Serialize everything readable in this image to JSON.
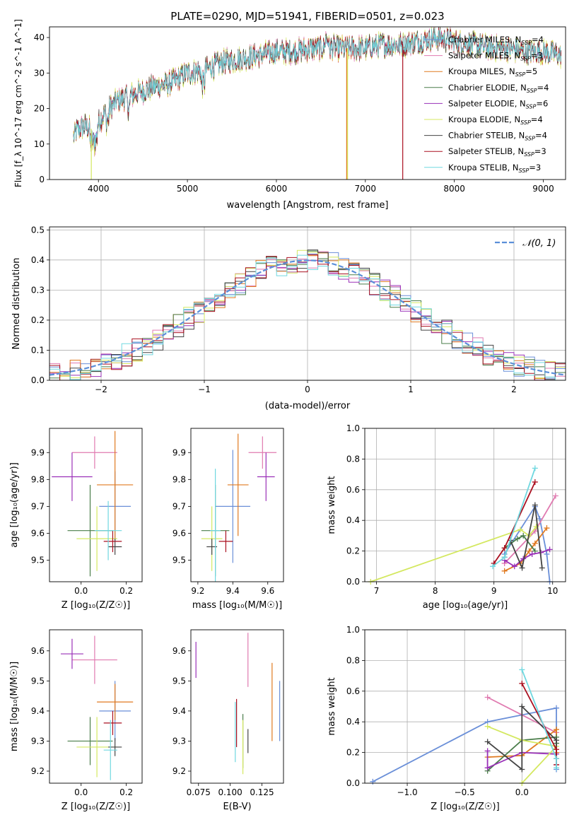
{
  "colors": {
    "Chabrier MILES": "#6a8fd8",
    "Salpeter MILES": "#e07ab0",
    "Kroupa MILES": "#e07a20",
    "Chabrier ELODIE": "#4a7d4a",
    "Salpeter ELODIE": "#9a30b8",
    "Kroupa ELODIE": "#d4e860",
    "Chabrier STELIB": "#444444",
    "Salpeter STELIB": "#aa1020",
    "Kroupa STELIB": "#70d8e0",
    "normal": "#5b8fd8"
  },
  "chart_data": [
    {
      "type": "line",
      "id": "spectrum",
      "title": "PLATE=0290, MJD=51941, FIBERID=0501, z=0.023",
      "xlabel": "wavelength [Angstrom, rest frame]",
      "ylabel": "Flux [f_λ 10^-17 erg cm^-2 s^-1 A^-1]",
      "xlim": [
        3450,
        9250
      ],
      "ylim": [
        0,
        43
      ],
      "xticks": [
        "4000",
        "5000",
        "6000",
        "7000",
        "8000",
        "9000"
      ],
      "yticks": [
        "0",
        "10",
        "20",
        "30",
        "40"
      ],
      "continuum_knots": {
        "x": [
          3720,
          3760,
          3850,
          3950,
          4050,
          4200,
          4400,
          4600,
          4800,
          5000,
          5200,
          5400,
          5600,
          5800,
          6000,
          6200,
          6400,
          6600,
          6800,
          7000,
          7200,
          7400,
          7600,
          7800,
          8000,
          8200,
          8400,
          8600,
          8800,
          9000,
          9200
        ],
        "y": [
          12,
          14,
          15,
          14,
          18,
          22,
          24,
          26,
          27,
          30,
          31,
          33,
          34,
          35,
          36,
          36,
          37,
          37,
          37,
          37,
          38,
          38,
          39,
          40,
          39,
          38,
          37,
          37,
          36,
          36,
          35
        ]
      },
      "legend": [
        {
          "label": "Chabrier MILES",
          "nssp": "4"
        },
        {
          "label": "Salpeter MILES",
          "nssp": "3"
        },
        {
          "label": "Kroupa MILES",
          "nssp": "5"
        },
        {
          "label": "Chabrier ELODIE",
          "nssp": "4"
        },
        {
          "label": "Salpeter ELODIE",
          "nssp": "6"
        },
        {
          "label": "Kroupa ELODIE",
          "nssp": "4"
        },
        {
          "label": "Chabrier STELIB",
          "nssp": "4"
        },
        {
          "label": "Salpeter STELIB",
          "nssp": "3"
        },
        {
          "label": "Kroupa STELIB",
          "nssp": "3"
        }
      ],
      "legend_placement": "right"
    },
    {
      "type": "histogram",
      "id": "residuals",
      "xlabel": "(data-model)/error",
      "ylabel": "Normed distribution",
      "xlim": [
        -2.5,
        2.5
      ],
      "ylim": [
        0,
        0.51
      ],
      "xticks": [
        "−2",
        "−1",
        "0",
        "1",
        "2"
      ],
      "yticks": [
        "0.0",
        "0.1",
        "0.2",
        "0.3",
        "0.4",
        "0.5"
      ],
      "bin_width": 0.1,
      "normal_legend": "𝒩(0, 1)",
      "legend_placement": "top-right",
      "grid": true
    },
    {
      "type": "scatter",
      "id": "age-vs-Z",
      "xlabel": "Z [log₁₀(Z/Z☉)]",
      "ylabel": "age  [log₁₀(age/yr)]",
      "xlim": [
        -0.14,
        0.27
      ],
      "ylim": [
        9.42,
        9.99
      ],
      "xticks": [
        "0.0",
        "0.2"
      ],
      "yticks": [
        "9.5",
        "9.6",
        "9.7",
        "9.8",
        "9.9"
      ],
      "points": [
        {
          "s": "Chabrier MILES",
          "x": 0.15,
          "xe": 0.07,
          "y": 9.7,
          "ye": 0.13
        },
        {
          "s": "Salpeter MILES",
          "x": 0.06,
          "xe": 0.1,
          "y": 9.9,
          "ye": 0.06
        },
        {
          "s": "Kroupa MILES",
          "x": 0.15,
          "xe": 0.08,
          "y": 9.78,
          "ye": 0.2
        },
        {
          "s": "Chabrier ELODIE",
          "x": 0.04,
          "xe": 0.1,
          "y": 9.61,
          "ye": 0.17
        },
        {
          "s": "Salpeter ELODIE",
          "x": -0.04,
          "xe": 0.09,
          "y": 9.81,
          "ye": 0.09
        },
        {
          "s": "Kroupa ELODIE",
          "x": 0.07,
          "xe": 0.09,
          "y": 9.58,
          "ye": 0.12
        },
        {
          "s": "Chabrier STELIB",
          "x": 0.15,
          "xe": 0.03,
          "y": 9.55,
          "ye": 0.03
        },
        {
          "s": "Salpeter STELIB",
          "x": 0.14,
          "xe": 0.04,
          "y": 9.57,
          "ye": 0.04
        },
        {
          "s": "Kroupa STELIB",
          "x": 0.12,
          "xe": 0.06,
          "y": 9.61,
          "ye": 0.11
        }
      ]
    },
    {
      "type": "scatter",
      "id": "age-vs-mass",
      "xlabel": "mass [log₁₀(M/M☉)]",
      "ylabel": "",
      "xlim": [
        9.16,
        9.69
      ],
      "ylim": [
        9.42,
        9.99
      ],
      "xticks": [
        "9.2",
        "9.4",
        "9.6"
      ],
      "yticks": [
        "9.5",
        "9.6",
        "9.7",
        "9.8",
        "9.9"
      ],
      "points": [
        {
          "s": "Chabrier MILES",
          "x": 9.4,
          "xe": 0.1,
          "y": 9.7,
          "ye": 0.21
        },
        {
          "s": "Salpeter MILES",
          "x": 9.57,
          "xe": 0.08,
          "y": 9.9,
          "ye": 0.06
        },
        {
          "s": "Kroupa MILES",
          "x": 9.43,
          "xe": 0.06,
          "y": 9.78,
          "ye": 0.19
        },
        {
          "s": "Chabrier ELODIE",
          "x": 9.3,
          "xe": 0.08,
          "y": 9.61,
          "ye": 0.17
        },
        {
          "s": "Salpeter ELODIE",
          "x": 9.59,
          "xe": 0.05,
          "y": 9.81,
          "ye": 0.09
        },
        {
          "s": "Kroupa ELODIE",
          "x": 9.28,
          "xe": 0.06,
          "y": 9.58,
          "ye": 0.12
        },
        {
          "s": "Chabrier STELIB",
          "x": 9.28,
          "xe": 0.03,
          "y": 9.55,
          "ye": 0.03
        },
        {
          "s": "Salpeter STELIB",
          "x": 9.36,
          "xe": 0.04,
          "y": 9.57,
          "ye": 0.04
        },
        {
          "s": "Kroupa STELIB",
          "x": 9.3,
          "xe": 0.03,
          "y": 9.61,
          "ye": 0.23
        }
      ]
    },
    {
      "type": "line",
      "id": "weight-vs-age",
      "xlabel": "age  [log₁₀(age/yr)]",
      "ylabel": "mass weight",
      "xlim": [
        6.8,
        10.22
      ],
      "ylim": [
        0,
        1
      ],
      "xticks": [
        "7",
        "8",
        "9",
        "10"
      ],
      "yticks": [
        "0.0",
        "0.2",
        "0.4",
        "0.6",
        "0.8",
        "1.0"
      ],
      "grid": true,
      "series": [
        {
          "s": "Chabrier MILES",
          "x": [
            9.18,
            9.7,
            9.78,
            9.9,
            9.95
          ],
          "y": [
            0.18,
            0.49,
            0.41,
            0.18,
            0.0
          ]
        },
        {
          "s": "Salpeter MILES",
          "x": [
            9.18,
            9.7,
            10.05
          ],
          "y": [
            0.12,
            0.33,
            0.56
          ]
        },
        {
          "s": "Kroupa MILES",
          "x": [
            9.18,
            9.45,
            9.6,
            9.7,
            9.9
          ],
          "y": [
            0.07,
            0.12,
            0.2,
            0.25,
            0.35
          ]
        },
        {
          "s": "Chabrier ELODIE",
          "x": [
            9.18,
            9.4,
            9.5,
            9.7
          ],
          "y": [
            0.22,
            0.28,
            0.3,
            0.2
          ]
        },
        {
          "s": "Salpeter ELODIE",
          "x": [
            9.18,
            9.35,
            9.5,
            9.65,
            9.8,
            9.95
          ],
          "y": [
            0.14,
            0.1,
            0.15,
            0.18,
            0.19,
            0.21
          ]
        },
        {
          "s": "Kroupa ELODIE",
          "x": [
            6.9,
            9.45,
            9.6,
            9.72
          ],
          "y": [
            0.0,
            0.34,
            0.3,
            0.36
          ]
        },
        {
          "s": "Chabrier STELIB",
          "x": [
            9.18,
            9.28,
            9.48,
            9.7,
            9.82
          ],
          "y": [
            0.16,
            0.27,
            0.09,
            0.5,
            0.09
          ]
        },
        {
          "s": "Salpeter STELIB",
          "x": [
            9.0,
            9.18,
            9.7
          ],
          "y": [
            0.12,
            0.22,
            0.65
          ]
        },
        {
          "s": "Kroupa STELIB",
          "x": [
            8.98,
            9.18,
            9.7
          ],
          "y": [
            0.1,
            0.16,
            0.74
          ]
        }
      ]
    },
    {
      "type": "scatter",
      "id": "mass-vs-Z",
      "xlabel": "Z [log₁₀(Z/Z☉)]",
      "ylabel": "mass [log₁₀(M/M☉)]",
      "xlim": [
        -0.14,
        0.27
      ],
      "ylim": [
        9.16,
        9.67
      ],
      "xticks": [
        "0.0",
        "0.2"
      ],
      "yticks": [
        "9.2",
        "9.3",
        "9.4",
        "9.5",
        "9.6"
      ],
      "points": [
        {
          "s": "Chabrier MILES",
          "x": 0.15,
          "xe": 0.07,
          "y": 9.4,
          "ye": 0.1
        },
        {
          "s": "Salpeter MILES",
          "x": 0.06,
          "xe": 0.1,
          "y": 9.57,
          "ye": 0.08
        },
        {
          "s": "Kroupa MILES",
          "x": 0.15,
          "xe": 0.08,
          "y": 9.43,
          "ye": 0.06
        },
        {
          "s": "Chabrier ELODIE",
          "x": 0.04,
          "xe": 0.1,
          "y": 9.3,
          "ye": 0.08
        },
        {
          "s": "Salpeter ELODIE",
          "x": -0.04,
          "xe": 0.05,
          "y": 9.59,
          "ye": 0.05
        },
        {
          "s": "Kroupa ELODIE",
          "x": 0.07,
          "xe": 0.09,
          "y": 9.28,
          "ye": 0.1
        },
        {
          "s": "Chabrier STELIB",
          "x": 0.15,
          "xe": 0.03,
          "y": 9.28,
          "ye": 0.03
        },
        {
          "s": "Salpeter STELIB",
          "x": 0.14,
          "xe": 0.04,
          "y": 9.36,
          "ye": 0.04
        },
        {
          "s": "Kroupa STELIB",
          "x": 0.13,
          "xe": 0.03,
          "y": 9.27,
          "ye": 0.1
        }
      ]
    },
    {
      "type": "scatter",
      "id": "mass-vs-ebv",
      "xlabel": "E(B-V)",
      "ylabel": "",
      "xlim": [
        0.069,
        0.142
      ],
      "ylim": [
        9.16,
        9.67
      ],
      "xticks": [
        "0.075",
        "0.100",
        "0.125"
      ],
      "yticks": [
        "9.2",
        "9.3",
        "9.4",
        "9.5",
        "9.6"
      ],
      "points": [
        {
          "s": "Chabrier MILES",
          "x": 0.139,
          "y": 9.4,
          "ye": 0.1
        },
        {
          "s": "Salpeter MILES",
          "x": 0.114,
          "y": 9.57,
          "ye": 0.09
        },
        {
          "s": "Kroupa MILES",
          "x": 0.133,
          "y": 9.43,
          "ye": 0.13
        },
        {
          "s": "Chabrier ELODIE",
          "x": 0.11,
          "y": 9.3,
          "ye": 0.09
        },
        {
          "s": "Salpeter ELODIE",
          "x": 0.073,
          "y": 9.57,
          "ye": 0.06
        },
        {
          "s": "Kroupa ELODIE",
          "x": 0.11,
          "y": 9.28,
          "ye": 0.09
        },
        {
          "s": "Chabrier STELIB",
          "x": 0.114,
          "y": 9.3,
          "ye": 0.04
        },
        {
          "s": "Salpeter STELIB",
          "x": 0.105,
          "y": 9.36,
          "ye": 0.08
        },
        {
          "s": "Kroupa STELIB",
          "x": 0.104,
          "y": 9.33,
          "ye": 0.1
        }
      ]
    },
    {
      "type": "line",
      "id": "weight-vs-Z",
      "xlabel": "Z [log₁₀(Z/Z☉)]",
      "ylabel": "mass weight",
      "xlim": [
        -1.37,
        0.38
      ],
      "ylim": [
        0,
        1
      ],
      "xticks": [
        "−1.0",
        "−0.5",
        "0.0"
      ],
      "yticks": [
        "0.0",
        "0.2",
        "0.4",
        "0.6",
        "0.8",
        "1.0"
      ],
      "grid": true,
      "series": [
        {
          "s": "Chabrier MILES",
          "x": [
            -1.3,
            -0.3,
            0.3,
            0.3
          ],
          "y": [
            0.01,
            0.4,
            0.49,
            0.09
          ]
        },
        {
          "s": "Salpeter MILES",
          "x": [
            -0.3,
            0.3,
            0.3
          ],
          "y": [
            0.56,
            0.33,
            0.12
          ]
        },
        {
          "s": "Kroupa MILES",
          "x": [
            -0.3,
            0.0,
            0.3,
            0.3
          ],
          "y": [
            0.17,
            0.18,
            0.35,
            0.2
          ]
        },
        {
          "s": "Chabrier ELODIE",
          "x": [
            -0.3,
            0.0,
            0.3,
            0.3
          ],
          "y": [
            0.08,
            0.28,
            0.3,
            0.26
          ]
        },
        {
          "s": "Salpeter ELODIE",
          "x": [
            -0.3,
            -0.3,
            0.0,
            0.3
          ],
          "y": [
            0.21,
            0.1,
            0.2,
            0.19
          ]
        },
        {
          "s": "Kroupa ELODIE",
          "x": [
            -0.3,
            0.0,
            0.3,
            0.0
          ],
          "y": [
            0.37,
            0.28,
            0.24,
            0.0
          ]
        },
        {
          "s": "Chabrier STELIB",
          "x": [
            -0.3,
            0.0,
            0.0,
            0.3,
            0.3
          ],
          "y": [
            0.27,
            0.09,
            0.5,
            0.28,
            0.16
          ]
        },
        {
          "s": "Salpeter STELIB",
          "x": [
            0.0,
            0.3,
            0.3
          ],
          "y": [
            0.65,
            0.22,
            0.12
          ]
        },
        {
          "s": "Kroupa STELIB",
          "x": [
            0.0,
            0.3,
            0.3
          ],
          "y": [
            0.74,
            0.16,
            0.1
          ]
        }
      ]
    }
  ]
}
